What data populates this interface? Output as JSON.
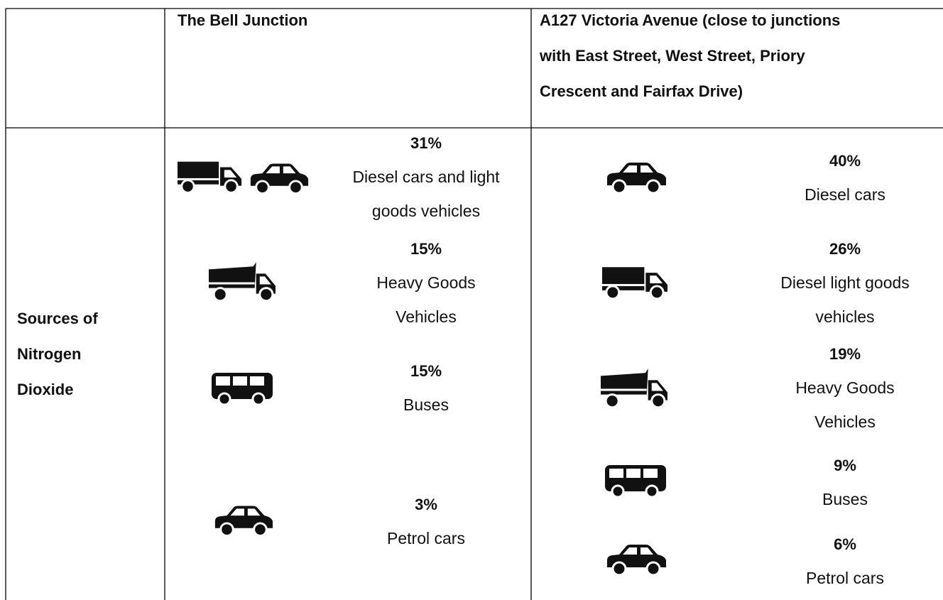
{
  "table": {
    "header": {
      "columns": [
        {
          "lines": [
            "The Bell Junction"
          ]
        },
        {
          "lines": [
            "A127 Victoria Avenue (close to junctions",
            "with East Street, West Street, Priory",
            "Crescent and Fairfax Drive)"
          ]
        }
      ]
    },
    "row_label": {
      "lines": [
        "Sources of",
        "Nitrogen",
        "Dioxide"
      ]
    },
    "columns": [
      {
        "entries": [
          {
            "percent": "31%",
            "label": [
              "Diesel cars and light",
              "goods vehicles"
            ]
          },
          {
            "percent": "15%",
            "label": [
              "Heavy Goods",
              "Vehicles"
            ]
          },
          {
            "percent": "15%",
            "label": [
              "Buses"
            ]
          },
          {
            "percent": "3%",
            "label": [
              "Petrol cars"
            ]
          }
        ]
      },
      {
        "entries": [
          {
            "percent": "40%",
            "label": [
              "Diesel cars"
            ]
          },
          {
            "percent": "26%",
            "label": [
              "Diesel light goods",
              "vehicles"
            ]
          },
          {
            "percent": "19%",
            "label": [
              "Heavy Goods",
              "Vehicles"
            ]
          },
          {
            "percent": "9%",
            "label": [
              "Buses"
            ]
          },
          {
            "percent": "6%",
            "label": [
              "Petrol cars"
            ]
          }
        ]
      }
    ]
  }
}
